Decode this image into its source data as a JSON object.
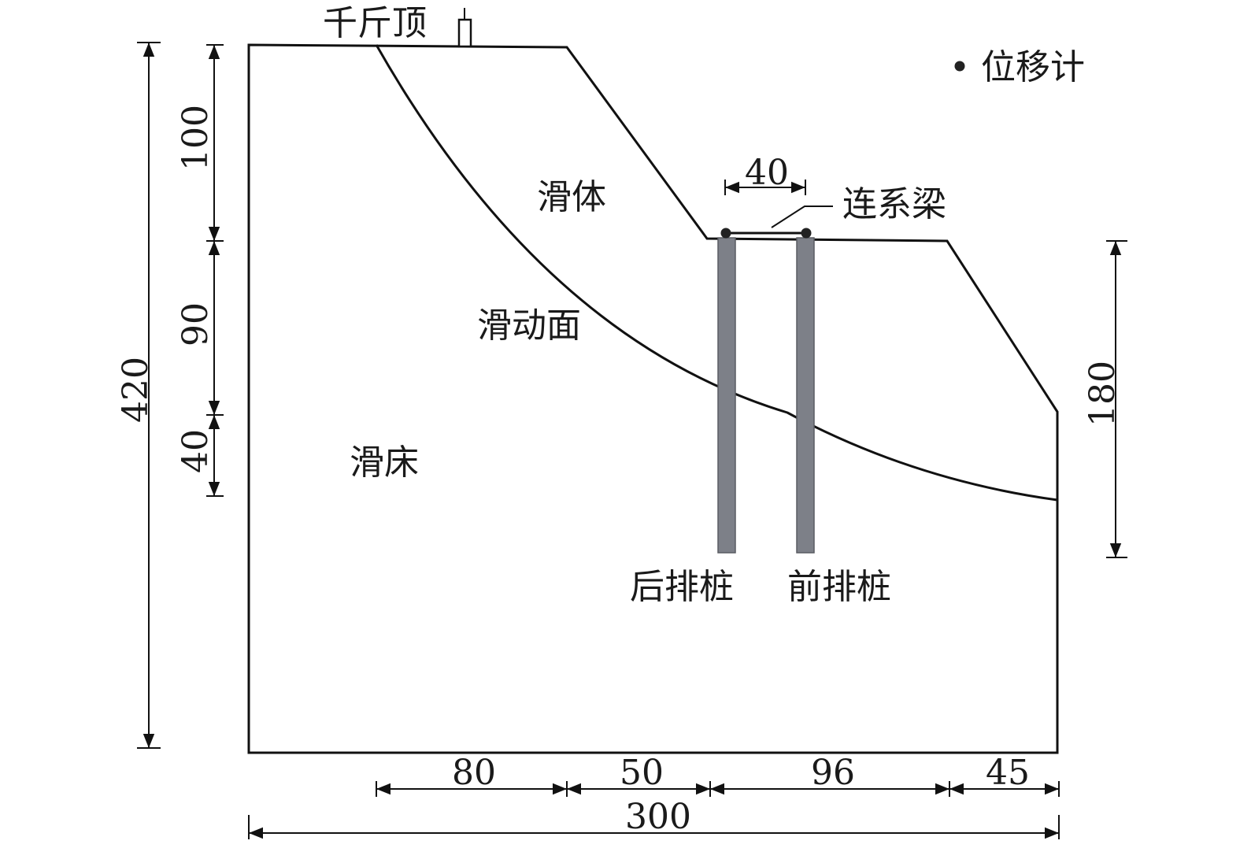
{
  "labels": {
    "jack": "千斤顶",
    "displacement_meter": "位移计",
    "sliding_body": "滑体",
    "tie_beam": "连系梁",
    "sliding_surface": "滑动面",
    "sliding_bed": "滑床",
    "rear_pile": "后排桩",
    "front_pile": "前排桩"
  },
  "dimensions": {
    "total_height": "420",
    "upper_height": "100",
    "middle_height": "90",
    "lower_height": "40",
    "right_height": "180",
    "pile_spacing": "40",
    "seg_1": "80",
    "seg_2": "50",
    "seg_3": "96",
    "seg_4": "45",
    "total_width": "300"
  },
  "colors": {
    "pile": "#7d8088",
    "line": "#111111"
  }
}
